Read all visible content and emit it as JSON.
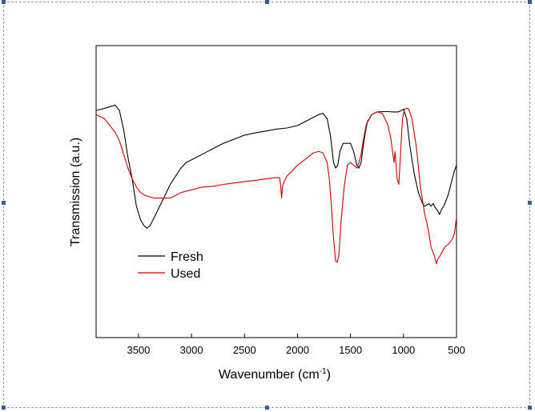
{
  "chart_data": {
    "type": "line",
    "xlabel": "Wavenumber (cm",
    "xlabel_sup": "-1",
    "xlabel_end": ")",
    "ylabel": "Transmission (a.u.)",
    "xlim": [
      3900,
      500
    ],
    "x_reversed": true,
    "ylim": [
      0,
      100
    ],
    "y_ticks_shown": false,
    "grid": false,
    "legend_position": "bottom-left",
    "x_ticks": [
      3500,
      3000,
      2500,
      2000,
      1500,
      1000,
      500
    ],
    "x_tick_labels": [
      "3500",
      "3000",
      "2500",
      "2000",
      "1500",
      "1000",
      "500"
    ],
    "series": [
      {
        "name": "Fresh",
        "color": "#000000",
        "x": [
          3900,
          3800,
          3720,
          3680,
          3640,
          3600,
          3560,
          3520,
          3480,
          3450,
          3420,
          3390,
          3350,
          3300,
          3250,
          3200,
          3150,
          3100,
          3050,
          3000,
          2900,
          2800,
          2700,
          2600,
          2500,
          2400,
          2300,
          2200,
          2100,
          2000,
          1900,
          1800,
          1760,
          1720,
          1690,
          1660,
          1640,
          1620,
          1600,
          1570,
          1540,
          1500,
          1470,
          1440,
          1420,
          1400,
          1380,
          1360,
          1340,
          1300,
          1250,
          1200,
          1150,
          1100,
          1050,
          1020,
          1000,
          970,
          940,
          900,
          860,
          820,
          800,
          780,
          760,
          740,
          720,
          700,
          680,
          660,
          650,
          640,
          620,
          600,
          580,
          560,
          540,
          520,
          500
        ],
        "y": [
          83,
          84,
          85,
          83,
          76,
          66,
          58,
          48,
          43,
          41,
          40,
          41,
          44,
          48,
          52,
          56,
          59,
          62,
          64,
          65,
          67,
          69,
          71,
          72.5,
          74,
          74.8,
          75.5,
          76.2,
          76.6,
          77.5,
          79.5,
          81.5,
          82,
          80,
          74,
          64,
          62,
          63,
          68,
          71,
          71,
          71,
          68,
          63,
          62,
          64,
          70,
          75,
          79,
          81.5,
          82.5,
          82.6,
          82.6,
          82.5,
          82.5,
          83,
          83.5,
          80,
          70,
          60,
          53,
          49,
          48,
          48.5,
          49,
          48,
          49,
          47.5,
          46.5,
          45,
          46,
          47,
          48,
          50,
          52,
          55,
          58,
          61,
          63
        ]
      },
      {
        "name": "Used",
        "color": "#cc0000",
        "x": [
          3900,
          3820,
          3760,
          3720,
          3680,
          3640,
          3600,
          3560,
          3520,
          3480,
          3440,
          3400,
          3350,
          3300,
          3250,
          3200,
          3150,
          3100,
          3000,
          2900,
          2800,
          2700,
          2600,
          2500,
          2400,
          2300,
          2200,
          2170,
          2160,
          2150,
          2140,
          2120,
          2100,
          2050,
          2000,
          1950,
          1900,
          1850,
          1800,
          1760,
          1720,
          1700,
          1680,
          1660,
          1640,
          1625,
          1610,
          1590,
          1560,
          1530,
          1500,
          1470,
          1440,
          1420,
          1400,
          1380,
          1350,
          1300,
          1250,
          1200,
          1150,
          1120,
          1100,
          1090,
          1080,
          1060,
          1045,
          1030,
          1010,
          990,
          970,
          950,
          920,
          880,
          840,
          800,
          780,
          760,
          740,
          720,
          710,
          700,
          690,
          680,
          660,
          640,
          620,
          600,
          580,
          560,
          540,
          520,
          500
        ],
        "y": [
          81.5,
          80,
          77,
          75,
          72,
          67,
          62,
          58,
          55,
          53,
          52,
          51.5,
          51,
          51,
          51,
          51,
          52,
          53,
          54,
          55,
          55.3,
          56,
          56.5,
          57,
          57.5,
          58,
          58.5,
          58.5,
          56,
          51,
          55.5,
          57.5,
          59,
          61,
          63,
          64.5,
          66,
          67.5,
          68,
          67.5,
          64,
          58,
          48,
          36,
          28,
          27.5,
          30,
          42,
          55,
          63,
          64,
          63,
          62,
          64,
          67,
          72,
          78,
          81.5,
          82.5,
          82,
          78,
          73,
          67,
          64,
          68,
          58,
          56,
          66,
          80,
          83.5,
          83.8,
          83.5,
          80,
          70,
          55,
          45,
          42,
          38,
          33,
          31,
          30,
          28.5,
          27,
          28.5,
          29.5,
          31,
          32.5,
          33.5,
          34,
          35,
          36,
          38,
          44
        ]
      }
    ]
  }
}
